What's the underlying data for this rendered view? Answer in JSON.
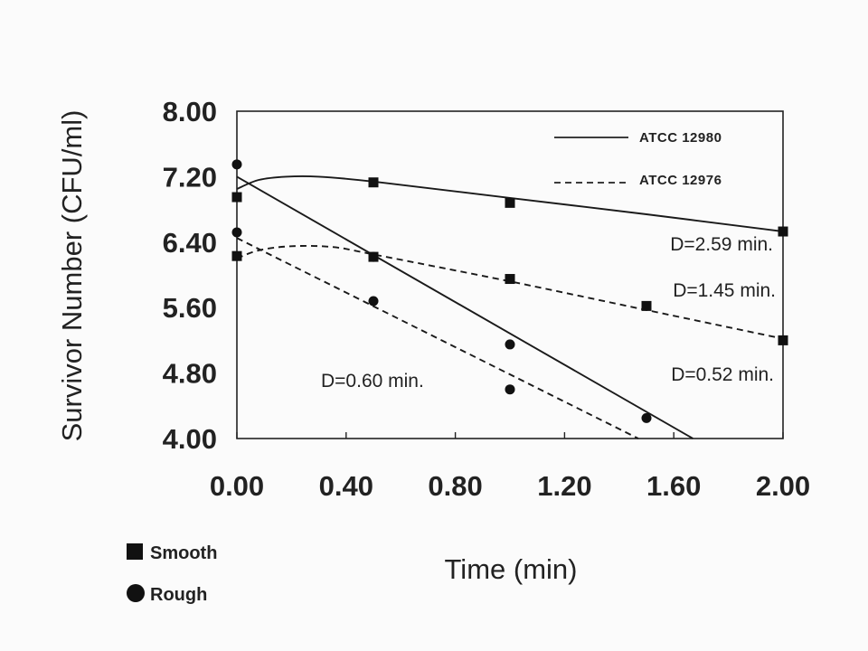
{
  "chart_data": {
    "type": "line",
    "ylabel": "Survivor Number (CFU/ml)",
    "xlabel": "Time (min)",
    "xlim": [
      0,
      2.0
    ],
    "ylim": [
      4.0,
      8.0
    ],
    "x_ticks": [
      "0.00",
      "0.40",
      "0.80",
      "1.20",
      "1.60",
      "2.00"
    ],
    "y_ticks": [
      "8.00",
      "7.20",
      "6.40",
      "5.60",
      "4.80",
      "4.00"
    ],
    "legend": {
      "placement": "top-right",
      "entries": [
        {
          "label": "ATCC 12980",
          "style": "solid"
        },
        {
          "label": "ATCC 12976",
          "style": "dashed"
        }
      ]
    },
    "marker_key": [
      {
        "label": "Smooth",
        "marker": "square"
      },
      {
        "label": "Rough",
        "marker": "circle"
      }
    ],
    "annotations": [
      "D=2.59 min.",
      "D=1.45 min.",
      "D=0.60 min.",
      "D=0.52 min."
    ],
    "series": [
      {
        "strain": "ATCC 12980",
        "form": "Smooth",
        "marker": "square",
        "line": "solid",
        "points": [
          [
            0.0,
            6.95
          ],
          [
            0.5,
            7.13
          ],
          [
            1.0,
            6.88
          ],
          [
            2.0,
            6.53
          ]
        ],
        "fit": [
          [
            0.0,
            7.05
          ],
          [
            0.08,
            7.16
          ],
          [
            0.18,
            7.2
          ],
          [
            0.3,
            7.2
          ],
          [
            0.5,
            7.14
          ],
          [
            1.0,
            6.94
          ],
          [
            1.5,
            6.74
          ],
          [
            2.0,
            6.53
          ]
        ]
      },
      {
        "strain": "ATCC 12976",
        "form": "Smooth",
        "marker": "square",
        "line": "dashed",
        "points": [
          [
            0.0,
            6.23
          ],
          [
            0.5,
            6.22
          ],
          [
            1.0,
            5.95
          ],
          [
            1.5,
            5.62
          ],
          [
            2.0,
            5.2
          ]
        ],
        "fit": [
          [
            0.0,
            6.2
          ],
          [
            0.08,
            6.3
          ],
          [
            0.2,
            6.35
          ],
          [
            0.35,
            6.34
          ],
          [
            0.5,
            6.25
          ],
          [
            1.0,
            5.92
          ],
          [
            1.5,
            5.57
          ],
          [
            2.0,
            5.22
          ]
        ]
      },
      {
        "strain": "ATCC 12980",
        "form": "Rough",
        "marker": "circle",
        "line": "solid",
        "points": [
          [
            0.0,
            7.35
          ],
          [
            0.5,
            6.22
          ],
          [
            1.0,
            5.15
          ],
          [
            1.5,
            4.25
          ]
        ],
        "fit": [
          [
            0.0,
            7.2
          ],
          [
            1.67,
            4.0
          ]
        ]
      },
      {
        "strain": "ATCC 12976",
        "form": "Rough",
        "marker": "circle",
        "line": "dashed",
        "points": [
          [
            0.0,
            6.52
          ],
          [
            0.5,
            5.68
          ],
          [
            1.0,
            4.6
          ]
        ],
        "fit": [
          [
            0.0,
            6.45
          ],
          [
            1.47,
            4.0
          ]
        ]
      }
    ]
  }
}
